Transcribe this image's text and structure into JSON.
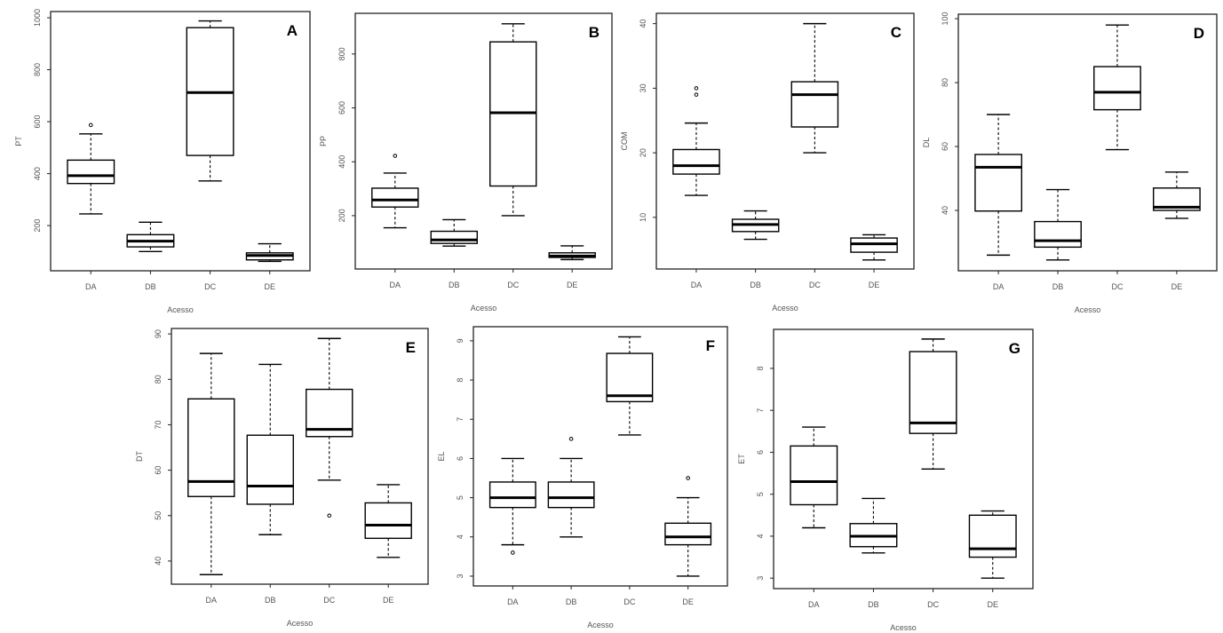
{
  "chart_data": [
    {
      "type": "boxplot",
      "panel": "A",
      "xlabel": "Acesso",
      "ylabel": "PT",
      "categories": [
        "DA",
        "DB",
        "DC",
        "DE"
      ],
      "ylim": [
        26,
        1024
      ],
      "yticks": [
        200,
        400,
        600,
        800,
        1000
      ],
      "boxes": [
        {
          "min": 245,
          "q1": 362,
          "median": 392,
          "q3": 452,
          "max": 553,
          "outliers": [
            587
          ]
        },
        {
          "min": 100,
          "q1": 118,
          "median": 140,
          "q3": 165,
          "max": 213,
          "outliers": []
        },
        {
          "min": 372,
          "q1": 470,
          "median": 712,
          "q3": 962,
          "max": 988,
          "outliers": []
        },
        {
          "min": 62,
          "q1": 68,
          "median": 85,
          "q3": 95,
          "max": 130,
          "outliers": []
        }
      ]
    },
    {
      "type": "boxplot",
      "panel": "B",
      "xlabel": "Acesso",
      "ylabel": "PP",
      "categories": [
        "DA",
        "DB",
        "DC",
        "DE"
      ],
      "ylim": [
        2,
        951
      ],
      "yticks": [
        200,
        400,
        600,
        800
      ],
      "boxes": [
        {
          "min": 155,
          "q1": 232,
          "median": 258,
          "q3": 302,
          "max": 358,
          "outliers": [
            422
          ]
        },
        {
          "min": 87,
          "q1": 97,
          "median": 110,
          "q3": 142,
          "max": 185,
          "outliers": []
        },
        {
          "min": 200,
          "q1": 310,
          "median": 582,
          "q3": 845,
          "max": 912,
          "outliers": []
        },
        {
          "min": 37,
          "q1": 45,
          "median": 50,
          "q3": 62,
          "max": 88,
          "outliers": []
        }
      ]
    },
    {
      "type": "boxplot",
      "panel": "C",
      "xlabel": "Acesso",
      "ylabel": "COM",
      "categories": [
        "DA",
        "DB",
        "DC",
        "DE"
      ],
      "ylim": [
        2.0,
        41.6
      ],
      "yticks": [
        10,
        20,
        30,
        40
      ],
      "boxes": [
        {
          "min": 13.4,
          "q1": 16.7,
          "median": 18,
          "q3": 20.5,
          "max": 24.6,
          "outliers": [
            29,
            30
          ]
        },
        {
          "min": 6.6,
          "q1": 7.8,
          "median": 8.9,
          "q3": 9.7,
          "max": 11,
          "outliers": []
        },
        {
          "min": 20,
          "q1": 24,
          "median": 29,
          "q3": 31,
          "max": 40,
          "outliers": []
        },
        {
          "min": 3.4,
          "q1": 4.6,
          "median": 5.9,
          "q3": 6.8,
          "max": 7.3,
          "outliers": []
        }
      ]
    },
    {
      "type": "boxplot",
      "panel": "D",
      "xlabel": "Acesso",
      "ylabel": "DL",
      "categories": [
        "DA",
        "DB",
        "DC",
        "DE"
      ],
      "ylim": [
        21.1,
        101.4
      ],
      "yticks": [
        40,
        60,
        80,
        100
      ],
      "boxes": [
        {
          "min": 26,
          "q1": 39.8,
          "median": 53.5,
          "q3": 57.5,
          "max": 70,
          "outliers": []
        },
        {
          "min": 24.5,
          "q1": 28.5,
          "median": 30.5,
          "q3": 36.5,
          "max": 46.5,
          "outliers": []
        },
        {
          "min": 59,
          "q1": 71.5,
          "median": 77,
          "q3": 85,
          "max": 98,
          "outliers": []
        },
        {
          "min": 37.5,
          "q1": 40,
          "median": 41,
          "q3": 47,
          "max": 52,
          "outliers": []
        }
      ]
    },
    {
      "type": "boxplot",
      "panel": "E",
      "xlabel": "Acesso",
      "ylabel": "DT",
      "categories": [
        "DA",
        "DB",
        "DC",
        "DE"
      ],
      "ylim": [
        34.9,
        91.2
      ],
      "yticks": [
        40,
        50,
        60,
        70,
        80,
        90
      ],
      "boxes": [
        {
          "min": 37,
          "q1": 54.2,
          "median": 57.5,
          "q3": 75.7,
          "max": 85.7,
          "outliers": []
        },
        {
          "min": 45.8,
          "q1": 52.5,
          "median": 56.5,
          "q3": 67.7,
          "max": 83.3,
          "outliers": []
        },
        {
          "min": 57.8,
          "q1": 67.4,
          "median": 69,
          "q3": 77.8,
          "max": 89,
          "outliers": [
            50
          ]
        },
        {
          "min": 40.8,
          "q1": 45,
          "median": 47.9,
          "q3": 52.8,
          "max": 56.8,
          "outliers": []
        }
      ]
    },
    {
      "type": "boxplot",
      "panel": "F",
      "xlabel": "Acesso",
      "ylabel": "EL",
      "categories": [
        "DA",
        "DB",
        "DC",
        "DE"
      ],
      "ylim": [
        2.75,
        9.36
      ],
      "yticks": [
        3,
        4,
        5,
        6,
        7,
        8,
        9
      ],
      "boxes": [
        {
          "min": 3.8,
          "q1": 4.75,
          "median": 5,
          "q3": 5.4,
          "max": 6,
          "outliers": [
            3.6
          ]
        },
        {
          "min": 4,
          "q1": 4.75,
          "median": 5,
          "q3": 5.4,
          "max": 6,
          "outliers": [
            6.5
          ]
        },
        {
          "min": 6.6,
          "q1": 7.45,
          "median": 7.6,
          "q3": 8.68,
          "max": 9.1,
          "outliers": []
        },
        {
          "min": 3,
          "q1": 3.8,
          "median": 4,
          "q3": 4.35,
          "max": 5,
          "outliers": [
            5.5
          ]
        }
      ]
    },
    {
      "type": "boxplot",
      "panel": "G",
      "xlabel": "Acesso",
      "ylabel": "ET",
      "categories": [
        "DA",
        "DB",
        "DC",
        "DE"
      ],
      "ylim": [
        2.75,
        8.93
      ],
      "yticks": [
        3,
        4,
        5,
        6,
        7,
        8
      ],
      "boxes": [
        {
          "min": 4.2,
          "q1": 4.75,
          "median": 5.3,
          "q3": 6.15,
          "max": 6.6,
          "outliers": []
        },
        {
          "min": 3.6,
          "q1": 3.75,
          "median": 4,
          "q3": 4.3,
          "max": 4.9,
          "outliers": []
        },
        {
          "min": 5.6,
          "q1": 6.45,
          "median": 6.7,
          "q3": 8.4,
          "max": 8.7,
          "outliers": []
        },
        {
          "min": 3,
          "q1": 3.5,
          "median": 3.7,
          "q3": 4.5,
          "max": 4.6,
          "outliers": []
        }
      ]
    }
  ]
}
